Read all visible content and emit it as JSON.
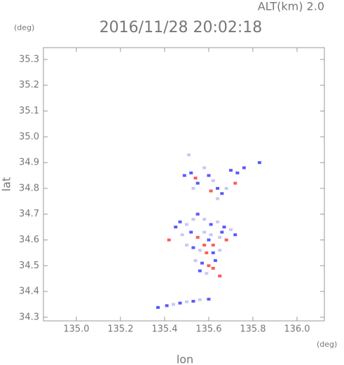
{
  "chart_data": {
    "type": "scatter",
    "title": "2016/11/28 20:02:18",
    "altitude_label": "ALT(km) 2.0",
    "y_unit": "(deg)",
    "x_unit": "(deg)",
    "xlabel": "lon",
    "ylabel": "lat",
    "xlim": [
      134.851,
      136.124
    ],
    "ylim": [
      34.286,
      35.346
    ],
    "xticks": [
      {
        "value": 135,
        "label": "135.0"
      },
      135.2,
      135.4,
      135.6,
      135.8,
      {
        "value": 136,
        "label": "136.0"
      }
    ],
    "yticks": [
      34.3,
      34.4,
      34.5,
      34.6,
      34.7,
      34.8,
      34.9,
      {
        "value": 35,
        "label": "35.0"
      },
      35.1,
      35.2,
      35.3
    ],
    "grid": false,
    "x": [
      135.37,
      135.41,
      135.44,
      135.47,
      135.5,
      135.53,
      135.56,
      135.6,
      135.51,
      135.49,
      135.52,
      135.54,
      135.55,
      135.53,
      135.58,
      135.6,
      135.62,
      135.64,
      135.66,
      135.68,
      135.7,
      135.73,
      135.76,
      135.83,
      135.72,
      135.61,
      135.64,
      135.47,
      135.5,
      135.53,
      135.55,
      135.58,
      135.61,
      135.64,
      135.67,
      135.7,
      135.72,
      135.48,
      135.52,
      135.55,
      135.58,
      135.6,
      135.62,
      135.65,
      135.68,
      135.5,
      135.53,
      135.56,
      135.59,
      135.62,
      135.65,
      135.54,
      135.57,
      135.6,
      135.63,
      135.56,
      135.59,
      135.62,
      135.65,
      135.42,
      135.45,
      135.58,
      135.61,
      135.66
    ],
    "y": [
      34.338,
      34.345,
      34.35,
      34.355,
      34.36,
      34.362,
      34.368,
      34.37,
      34.93,
      34.85,
      34.86,
      34.84,
      34.82,
      34.8,
      34.88,
      34.85,
      34.83,
      34.8,
      34.78,
      34.8,
      34.87,
      34.86,
      34.88,
      34.9,
      34.82,
      34.79,
      34.76,
      34.67,
      34.66,
      34.68,
      34.7,
      34.68,
      34.66,
      34.67,
      34.65,
      34.64,
      34.62,
      34.62,
      34.63,
      34.61,
      34.63,
      34.6,
      34.58,
      34.61,
      34.6,
      34.58,
      34.57,
      34.56,
      34.55,
      34.55,
      34.56,
      34.52,
      34.51,
      34.5,
      34.52,
      34.48,
      34.47,
      34.49,
      34.46,
      34.6,
      34.65,
      34.58,
      34.62,
      34.63
    ],
    "colors": [
      "#5a5aff",
      "#5a5aff",
      "#c8c8f5",
      "#5a5aff",
      "#c8c8f5",
      "#5a5aff",
      "#c8c8f5",
      "#5a5aff",
      "#c8c8f5",
      "#5a5aff",
      "#5a5aff",
      "#ff5a5a",
      "#5a5aff",
      "#c8c8f5",
      "#c8c8f5",
      "#5a5aff",
      "#c8c8f5",
      "#5a5aff",
      "#5a5aff",
      "#c8c8f5",
      "#5a5aff",
      "#5a5aff",
      "#5a5aff",
      "#5a5aff",
      "#ff5a5a",
      "#ff5a5a",
      "#c8c8f5",
      "#5a5aff",
      "#c8c8f5",
      "#c8c8f5",
      "#5a5aff",
      "#c8c8f5",
      "#5a5aff",
      "#c8c8f5",
      "#5a5aff",
      "#c8c8f5",
      "#5a5aff",
      "#c8c8f5",
      "#5a5aff",
      "#ff5a5a",
      "#c8c8f5",
      "#5a5aff",
      "#ff5a5a",
      "#c8c8f5",
      "#ff5a5a",
      "#c8c8f5",
      "#5a5aff",
      "#c8c8f5",
      "#ff5a5a",
      "#5a5aff",
      "#c8c8f5",
      "#c8c8f5",
      "#5a5aff",
      "#ff5a5a",
      "#5a5aff",
      "#5a5aff",
      "#c8c8f5",
      "#ff5a5a",
      "#ff5a5a",
      "#ff5a5a",
      "#5a5aff",
      "#ff5a5a",
      "#c8c8f5",
      "#5a5aff"
    ]
  }
}
